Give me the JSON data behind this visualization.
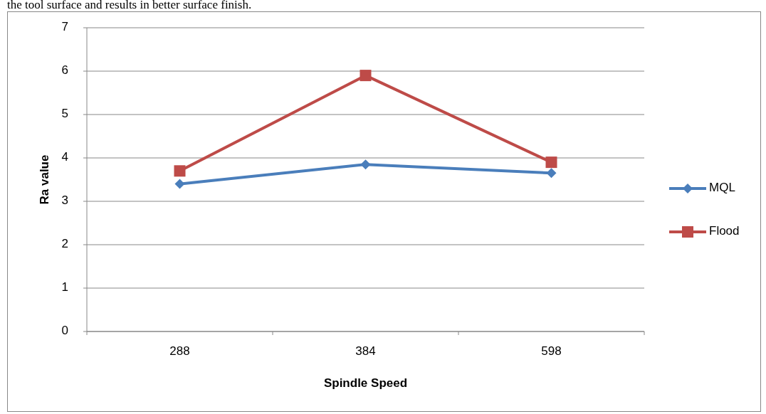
{
  "chart_data": {
    "type": "line",
    "xlabel": "Spindle Speed",
    "ylabel": "Ra value",
    "annotations": [
      "the tool surface and results in better surface finish."
    ],
    "categories": [
      "288",
      "384",
      "598"
    ],
    "series": [
      {
        "name": "MQL",
        "color": "#4a7ebb",
        "marker": "diamond",
        "values": [
          3.4,
          3.85,
          3.65
        ]
      },
      {
        "name": "Flood",
        "color": "#be4b48",
        "marker": "square",
        "values": [
          3.7,
          5.9,
          3.9
        ]
      }
    ],
    "ylim": [
      0,
      7
    ],
    "yticks": [
      0,
      1,
      2,
      3,
      4,
      5,
      6,
      7
    ],
    "grid": "y",
    "legend": "right",
    "line_style": "solid"
  }
}
